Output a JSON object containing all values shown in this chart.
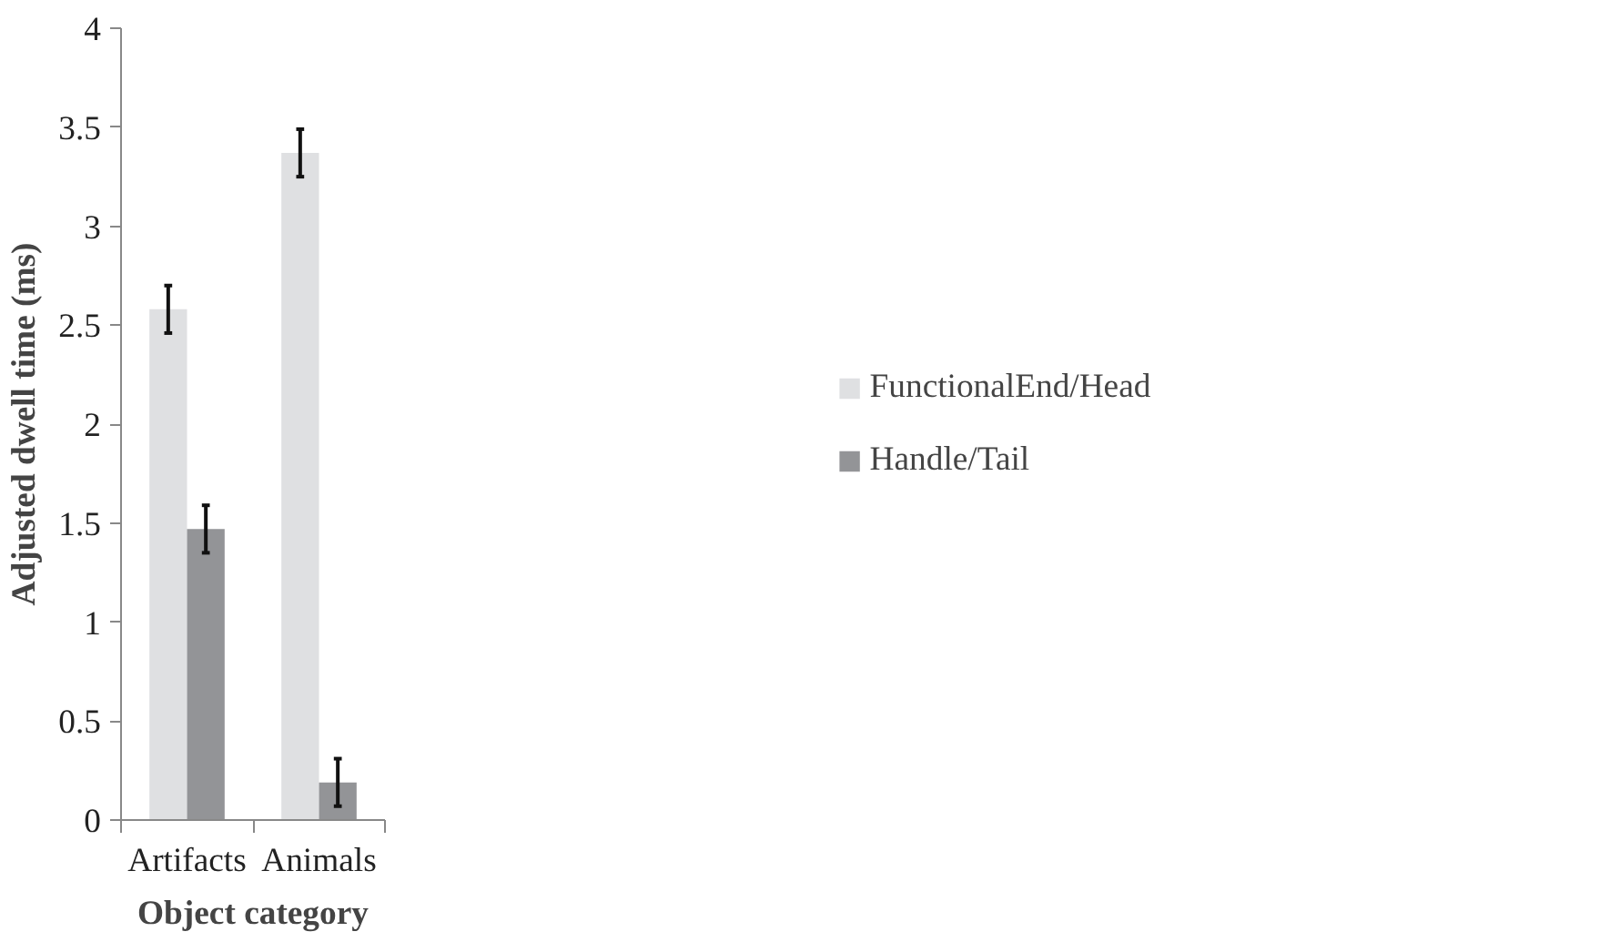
{
  "chart_data": {
    "type": "bar",
    "xlabel": "Object category",
    "ylabel": "Adjusted dwell time (ms)",
    "categories": [
      "Artifacts",
      "Animals"
    ],
    "series": [
      {
        "name": "FunctionalEnd/Head",
        "color": "#dfe0e2",
        "values": [
          2.58,
          3.37
        ],
        "errors": [
          0.12,
          0.12
        ]
      },
      {
        "name": "Handle/Tail",
        "color": "#939497",
        "values": [
          1.47,
          0.19
        ],
        "errors": [
          0.12,
          0.12
        ]
      }
    ],
    "ylim": [
      0,
      4
    ],
    "yticks": [
      0,
      0.5,
      1,
      1.5,
      2,
      2.5,
      3,
      3.5,
      4
    ],
    "grid": false,
    "legend": "right"
  }
}
